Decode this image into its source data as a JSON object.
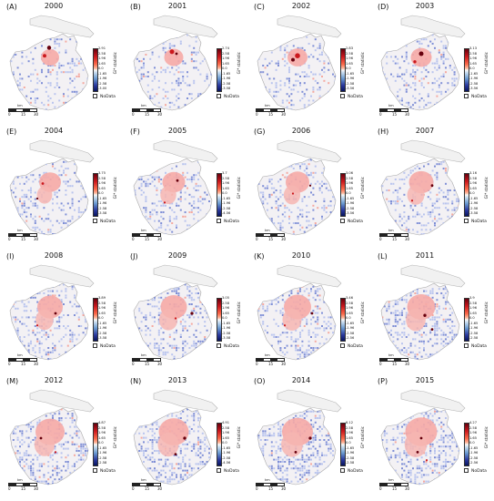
{
  "legend": {
    "axis_label": "Gi* statistic",
    "nodata_label": "NoData",
    "colors": [
      "#67000d",
      "#cb181d",
      "#fb6a4a",
      "#fcbba1",
      "#f7f7f7",
      "#c6dbef",
      "#6b9bd1",
      "#2b3a9f",
      "#08145e"
    ]
  },
  "scalebar": {
    "unit": "km",
    "labels": [
      "0",
      "15",
      "30"
    ]
  },
  "panels": [
    {
      "letter": "(A)",
      "year": "2000",
      "ticks": [
        "2.91",
        "2.58",
        "1.96",
        "1.65",
        "0.0",
        "-1.65",
        "-1.96",
        "-2.58",
        "-3.00"
      ],
      "hotspots": [
        [
          0.49,
          0.34,
          0.08,
          "#67000d"
        ],
        [
          0.44,
          0.42,
          0.07,
          "#cb181d"
        ]
      ]
    },
    {
      "letter": "(B)",
      "year": "2001",
      "ticks": [
        "2.74",
        "2.58",
        "1.96",
        "1.65",
        "0.0",
        "-1.65",
        "-1.96",
        "-2.58",
        "-3.58"
      ],
      "hotspots": [
        [
          0.48,
          0.38,
          0.09,
          "#cb181d"
        ],
        [
          0.53,
          0.4,
          0.05,
          "#67000d"
        ]
      ]
    },
    {
      "letter": "(C)",
      "year": "2002",
      "ticks": [
        "2.83",
        "2.58",
        "1.96",
        "1.65",
        "0.0",
        "-1.65",
        "-1.96",
        "-2.58",
        "-3.56"
      ],
      "hotspots": [
        [
          0.5,
          0.42,
          0.1,
          "#cb181d"
        ],
        [
          0.45,
          0.46,
          0.07,
          "#67000d"
        ]
      ]
    },
    {
      "letter": "(D)",
      "year": "2003",
      "ticks": [
        "3.13",
        "2.58",
        "1.96",
        "1.65",
        "0.0",
        "-1.65",
        "-1.96",
        "-2.58",
        "-3.56"
      ],
      "hotspots": [
        [
          0.5,
          0.4,
          0.09,
          "#67000d"
        ],
        [
          0.43,
          0.48,
          0.06,
          "#cb181d"
        ]
      ]
    },
    {
      "letter": "(E)",
      "year": "2004",
      "ticks": [
        "3.75",
        "2.58",
        "1.96",
        "1.65",
        "0.0",
        "-1.65",
        "-1.96",
        "-2.58",
        "-3.58"
      ],
      "hotspots": [
        [
          0.42,
          0.45,
          0.05,
          "#cb181d"
        ],
        [
          0.36,
          0.6,
          0.04,
          "#67000d"
        ]
      ]
    },
    {
      "letter": "(F)",
      "year": "2005",
      "ticks": [
        "3.7",
        "2.58",
        "1.96",
        "1.65",
        "0.0",
        "-1.65",
        "-1.96",
        "-2.58",
        "-4.56"
      ],
      "hotspots": [
        [
          0.54,
          0.42,
          0.05,
          "#67000d"
        ],
        [
          0.4,
          0.64,
          0.04,
          "#cb181d"
        ]
      ]
    },
    {
      "letter": "(G)",
      "year": "2006",
      "ticks": [
        "3.06",
        "2.58",
        "1.96",
        "1.65",
        "0.0",
        "-1.65",
        "-1.96",
        "-2.58",
        "-3.56"
      ],
      "hotspots": [
        [
          0.64,
          0.47,
          0.04,
          "#67000d"
        ],
        [
          0.45,
          0.55,
          0.04,
          "#cb181d"
        ]
      ]
    },
    {
      "letter": "(H)",
      "year": "2007",
      "ticks": [
        "3.16",
        "2.58",
        "1.96",
        "1.65",
        "0.0",
        "-1.65",
        "-1.96",
        "-2.58",
        "-3.58"
      ],
      "hotspots": [
        [
          0.62,
          0.47,
          0.05,
          "#67000d"
        ],
        [
          0.4,
          0.62,
          0.04,
          "#cb181d"
        ]
      ]
    },
    {
      "letter": "(I)",
      "year": "2008",
      "ticks": [
        "3.89",
        "2.58",
        "1.96",
        "1.65",
        "0.0",
        "-1.65",
        "-1.96",
        "-2.58",
        "-3.58"
      ],
      "hotspots": [
        [
          0.56,
          0.5,
          0.05,
          "#67000d"
        ],
        [
          0.36,
          0.62,
          0.04,
          "#cb181d"
        ]
      ]
    },
    {
      "letter": "(J)",
      "year": "2009",
      "ticks": [
        "3.05",
        "2.58",
        "1.96",
        "1.65",
        "0.0",
        "-1.65",
        "-1.96",
        "-2.58",
        "-3.58"
      ],
      "hotspots": [
        [
          0.7,
          0.5,
          0.06,
          "#67000d"
        ],
        [
          0.52,
          0.55,
          0.04,
          "#cb181d"
        ]
      ]
    },
    {
      "letter": "(K)",
      "year": "2010",
      "ticks": [
        "3.46",
        "2.58",
        "1.96",
        "1.65",
        "0.0",
        "-1.65",
        "-1.96",
        "-2.58",
        "-2.56"
      ],
      "hotspots": [
        [
          0.66,
          0.5,
          0.05,
          "#67000d"
        ],
        [
          0.36,
          0.62,
          0.04,
          "#cb181d"
        ]
      ]
    },
    {
      "letter": "(L)",
      "year": "2011",
      "ticks": [
        "3.9",
        "2.58",
        "1.96",
        "1.65",
        "0.0",
        "-1.65",
        "-1.96",
        "-2.58",
        "-2.58"
      ],
      "hotspots": [
        [
          0.54,
          0.52,
          0.06,
          "#67000d"
        ],
        [
          0.62,
          0.66,
          0.05,
          "#67000d"
        ]
      ]
    },
    {
      "letter": "(M)",
      "year": "2012",
      "ticks": [
        "4.87",
        "2.58",
        "1.96",
        "1.65",
        "0.0",
        "-1.65",
        "-1.96",
        "-2.58",
        "-2.58"
      ],
      "hotspots": [
        [
          0.4,
          0.5,
          0.05,
          "#67000d"
        ],
        [
          0.56,
          0.64,
          0.04,
          "#cb181d"
        ]
      ]
    },
    {
      "letter": "(N)",
      "year": "2013",
      "ticks": [
        "4.91",
        "2.58",
        "1.96",
        "1.65",
        "0.0",
        "-1.65",
        "-1.96",
        "-2.58",
        "-4.56"
      ],
      "hotspots": [
        [
          0.62,
          0.5,
          0.06,
          "#67000d"
        ],
        [
          0.52,
          0.66,
          0.05,
          "#67000d"
        ]
      ]
    },
    {
      "letter": "(O)",
      "year": "2014",
      "ticks": [
        "6.12",
        "2.58",
        "1.96",
        "1.65",
        "0.0",
        "-1.65",
        "-1.96",
        "-2.58",
        "-2.58"
      ],
      "hotspots": [
        [
          0.64,
          0.5,
          0.06,
          "#67000d"
        ],
        [
          0.48,
          0.64,
          0.05,
          "#67000d"
        ]
      ]
    },
    {
      "letter": "(P)",
      "year": "2015",
      "ticks": [
        "4.27",
        "2.58",
        "1.96",
        "1.65",
        "0.0",
        "-1.65",
        "-1.96",
        "-2.58",
        "-2.56"
      ],
      "hotspots": [
        [
          0.5,
          0.5,
          0.05,
          "#67000d"
        ],
        [
          0.46,
          0.64,
          0.05,
          "#67000d"
        ],
        [
          0.56,
          0.72,
          0.04,
          "#cb181d"
        ]
      ]
    }
  ]
}
